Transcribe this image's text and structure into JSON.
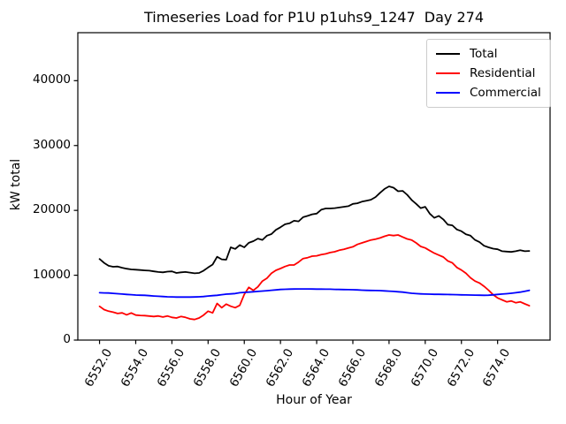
{
  "title": "Timeseries Load for P1U p1uhs9_1247  Day 274",
  "chart_data": {
    "type": "line",
    "title": "Timeseries Load for P1U p1uhs9_1247  Day 274",
    "xlabel": "Hour of Year",
    "ylabel": "kW total",
    "grid": false,
    "legend_position": "upper right",
    "xlim": [
      6550.8,
      6576.9
    ],
    "ylim": [
      0,
      47400
    ],
    "xticks": [
      6552,
      6554,
      6556,
      6558,
      6560,
      6562,
      6564,
      6566,
      6568,
      6570,
      6572,
      6574
    ],
    "xtick_labels": [
      "6552.0",
      "6554.0",
      "6556.0",
      "6558.0",
      "6560.0",
      "6562.0",
      "6564.0",
      "6566.0",
      "6568.0",
      "6570.0",
      "6572.0",
      "6574.0"
    ],
    "yticks": [
      0,
      10000,
      20000,
      30000,
      40000
    ],
    "ytick_labels": [
      "0",
      "10000",
      "20000",
      "30000",
      "40000"
    ],
    "x": [
      6552,
      6552.25,
      6552.5,
      6552.75,
      6553,
      6553.25,
      6553.5,
      6553.75,
      6554,
      6554.25,
      6554.5,
      6554.75,
      6555,
      6555.25,
      6555.5,
      6555.75,
      6556,
      6556.25,
      6556.5,
      6556.75,
      6557,
      6557.25,
      6557.5,
      6557.75,
      6558,
      6558.25,
      6558.5,
      6558.75,
      6559,
      6559.25,
      6559.5,
      6559.75,
      6560,
      6560.25,
      6560.5,
      6560.75,
      6561,
      6561.25,
      6561.5,
      6561.75,
      6562,
      6562.25,
      6562.5,
      6562.75,
      6563,
      6563.25,
      6563.5,
      6563.75,
      6564,
      6564.25,
      6564.5,
      6564.75,
      6565,
      6565.25,
      6565.5,
      6565.75,
      6566,
      6566.25,
      6566.5,
      6566.75,
      6567,
      6567.25,
      6567.5,
      6567.75,
      6568,
      6568.25,
      6568.5,
      6568.75,
      6569,
      6569.25,
      6569.5,
      6569.75,
      6570,
      6570.25,
      6570.5,
      6570.75,
      6571,
      6571.25,
      6571.5,
      6571.75,
      6572,
      6572.25,
      6572.5,
      6572.75,
      6573,
      6573.25,
      6573.5,
      6573.75,
      6574,
      6574.25,
      6574.5,
      6574.75,
      6575,
      6575.25,
      6575.5,
      6575.75
    ],
    "series": [
      {
        "name": "Total",
        "color": "#000000",
        "values": [
          12500,
          11900,
          11450,
          11300,
          11350,
          11150,
          11000,
          10900,
          10850,
          10800,
          10750,
          10700,
          10600,
          10500,
          10450,
          10550,
          10600,
          10350,
          10450,
          10500,
          10400,
          10300,
          10350,
          10700,
          11200,
          11650,
          12850,
          12450,
          12400,
          14300,
          14050,
          14650,
          14300,
          15000,
          15250,
          15650,
          15450,
          16100,
          16350,
          17000,
          17400,
          17850,
          18000,
          18400,
          18300,
          18950,
          19150,
          19400,
          19500,
          20100,
          20300,
          20300,
          20350,
          20450,
          20550,
          20650,
          21000,
          21100,
          21350,
          21500,
          21650,
          22050,
          22700,
          23300,
          23700,
          23500,
          22950,
          23000,
          22400,
          21600,
          21000,
          20350,
          20550,
          19500,
          18850,
          19150,
          18600,
          17800,
          17700,
          17050,
          16800,
          16300,
          16100,
          15450,
          15100,
          14550,
          14300,
          14100,
          14000,
          13700,
          13650,
          13600,
          13700,
          13850,
          13700,
          13750
        ]
      },
      {
        "name": "Residential",
        "color": "#ff0000",
        "values": [
          5200,
          4700,
          4450,
          4300,
          4100,
          4200,
          3900,
          4180,
          3860,
          3800,
          3770,
          3700,
          3640,
          3720,
          3550,
          3720,
          3500,
          3400,
          3630,
          3500,
          3270,
          3180,
          3410,
          3860,
          4450,
          4200,
          5650,
          5000,
          5540,
          5220,
          5000,
          5350,
          7040,
          8130,
          7670,
          8210,
          9100,
          9530,
          10300,
          10760,
          11030,
          11350,
          11580,
          11580,
          12030,
          12570,
          12710,
          12940,
          13000,
          13170,
          13300,
          13500,
          13620,
          13850,
          14000,
          14210,
          14390,
          14750,
          14980,
          15200,
          15430,
          15570,
          15750,
          16000,
          16210,
          16120,
          16210,
          15900,
          15600,
          15430,
          14980,
          14440,
          14200,
          13800,
          13400,
          13100,
          12800,
          12200,
          11900,
          11200,
          10800,
          10300,
          9600,
          9100,
          8800,
          8300,
          7700,
          7000,
          6500,
          6200,
          5900,
          6040,
          5760,
          5900,
          5590,
          5300
        ]
      },
      {
        "name": "Commercial",
        "color": "#0000ff",
        "values": [
          7300,
          7280,
          7260,
          7200,
          7150,
          7100,
          7040,
          7000,
          6950,
          6920,
          6900,
          6850,
          6800,
          6760,
          6720,
          6680,
          6660,
          6640,
          6630,
          6630,
          6630,
          6650,
          6680,
          6720,
          6800,
          6850,
          6900,
          7000,
          7080,
          7130,
          7180,
          7300,
          7360,
          7400,
          7450,
          7500,
          7560,
          7620,
          7680,
          7740,
          7800,
          7830,
          7860,
          7870,
          7880,
          7880,
          7880,
          7870,
          7860,
          7860,
          7850,
          7840,
          7820,
          7800,
          7790,
          7780,
          7770,
          7730,
          7700,
          7670,
          7650,
          7640,
          7630,
          7590,
          7550,
          7500,
          7450,
          7400,
          7300,
          7220,
          7160,
          7130,
          7100,
          7080,
          7060,
          7050,
          7040,
          7030,
          7020,
          7000,
          6980,
          6960,
          6950,
          6930,
          6920,
          6900,
          6920,
          6980,
          7040,
          7100,
          7150,
          7220,
          7300,
          7400,
          7520,
          7670
        ]
      }
    ]
  }
}
